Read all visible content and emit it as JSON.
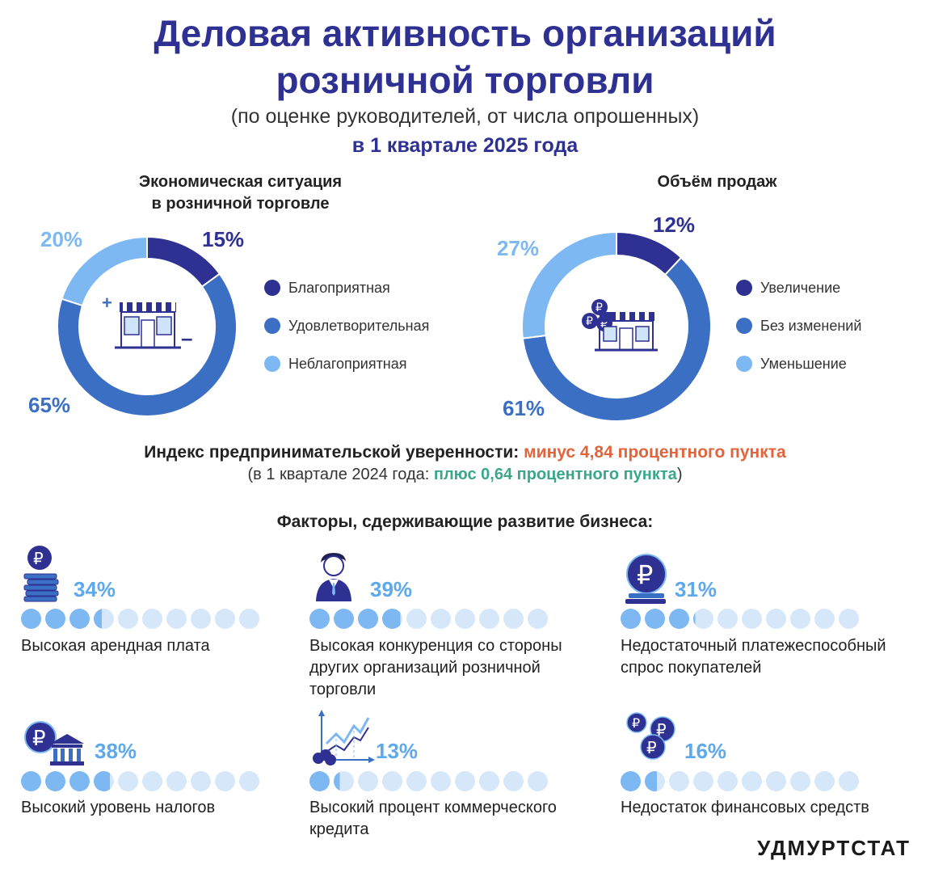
{
  "header": {
    "title_line1": "Деловая активность организаций",
    "title_line2": "розничной торговли",
    "subtitle": "(по оценке руководителей, от числа опрошенных)",
    "period": "в 1 квартале 2025 года"
  },
  "colors": {
    "dark": "#2e3192",
    "mid": "#3b6fc4",
    "light": "#7db8f2",
    "dot_empty": "#d6e7f9",
    "negative": "#e0643c",
    "positive": "#3aa78c"
  },
  "chart_data": [
    {
      "type": "pie",
      "title": "Экономическая ситуация в розничной торговле",
      "title_line1": "Экономическая ситуация",
      "title_line2": "в розничной торговле",
      "categories": [
        "Благоприятная",
        "Удовлетворительная",
        "Неблагоприятная"
      ],
      "values": [
        15,
        65,
        20
      ],
      "labels": [
        "15%",
        "65%",
        "20%"
      ]
    },
    {
      "type": "pie",
      "title": "Объём продаж",
      "categories": [
        "Увеличение",
        "Без изменений",
        "Уменьшение"
      ],
      "values": [
        12,
        61,
        27
      ],
      "labels": [
        "12%",
        "61%",
        "27%"
      ]
    }
  ],
  "index": {
    "label": "Индекс предпринимательской уверенности:",
    "value": "минус 4,84 процентного пункта",
    "prev_open": "(в 1 квартале 2024 года: ",
    "prev_value": "плюс 0,64 процентного пункта",
    "prev_close": ")"
  },
  "factors_title": "Факторы, сдерживающие развитие бизнеса:",
  "factors": [
    {
      "icon": "coin-stack-icon",
      "percent": 34,
      "percent_label": "34%",
      "label": "Высокая арендная плата"
    },
    {
      "icon": "competitor-person-icon",
      "percent": 39,
      "percent_label": "39%",
      "label": "Высокая конкуренция со стороны других организаций розничной торговли"
    },
    {
      "icon": "ruble-coin-icon",
      "percent": 31,
      "percent_label": "31%",
      "label": "Недостаточный платежеспособный спрос покупателей"
    },
    {
      "icon": "ruble-bank-icon",
      "percent": 38,
      "percent_label": "38%",
      "label": "Высокий уровень налогов"
    },
    {
      "icon": "growth-chart-icon",
      "percent": 13,
      "percent_label": "13%",
      "label": "Высокий процент коммерческого кредита"
    },
    {
      "icon": "ruble-coins-icon",
      "percent": 16,
      "percent_label": "16%",
      "label": "Недостаток финансовых средств"
    }
  ],
  "brand": "УДМУРТСТАТ"
}
